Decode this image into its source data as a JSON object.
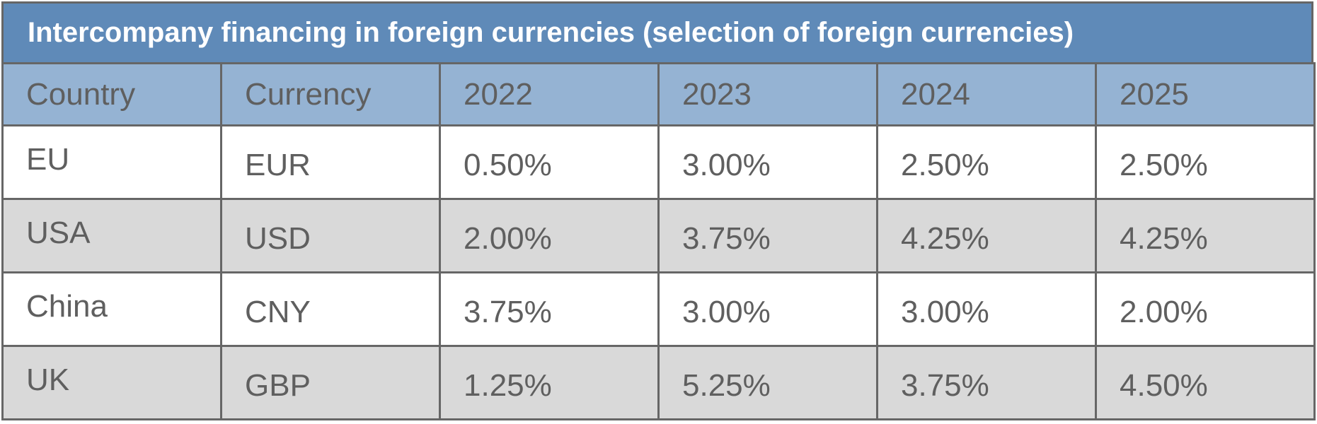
{
  "colors": {
    "title_bg": "#5f8ab8",
    "header_bg": "#95b3d3",
    "row_white": "#ffffff",
    "row_gray": "#d9d9d9",
    "border": "#666666",
    "text": "#5f5f5f",
    "title_text": "#ffffff"
  },
  "chart_data": {
    "type": "table",
    "title": "Intercompany financing in foreign currencies (selection of foreign currencies)",
    "columns": [
      "Country",
      "Currency",
      "2022",
      "2023",
      "2024",
      "2025"
    ],
    "rows": [
      [
        "EU",
        "EUR",
        "0.50%",
        "3.00%",
        "2.50%",
        "2.50%"
      ],
      [
        "USA",
        "USD",
        "2.00%",
        "3.75%",
        "4.25%",
        "4.25%"
      ],
      [
        "China",
        "CNY",
        "3.75%",
        "3.00%",
        "3.00%",
        "2.00%"
      ],
      [
        "UK",
        "GBP",
        "1.25%",
        "5.25%",
        "3.75%",
        "4.50%"
      ]
    ]
  }
}
